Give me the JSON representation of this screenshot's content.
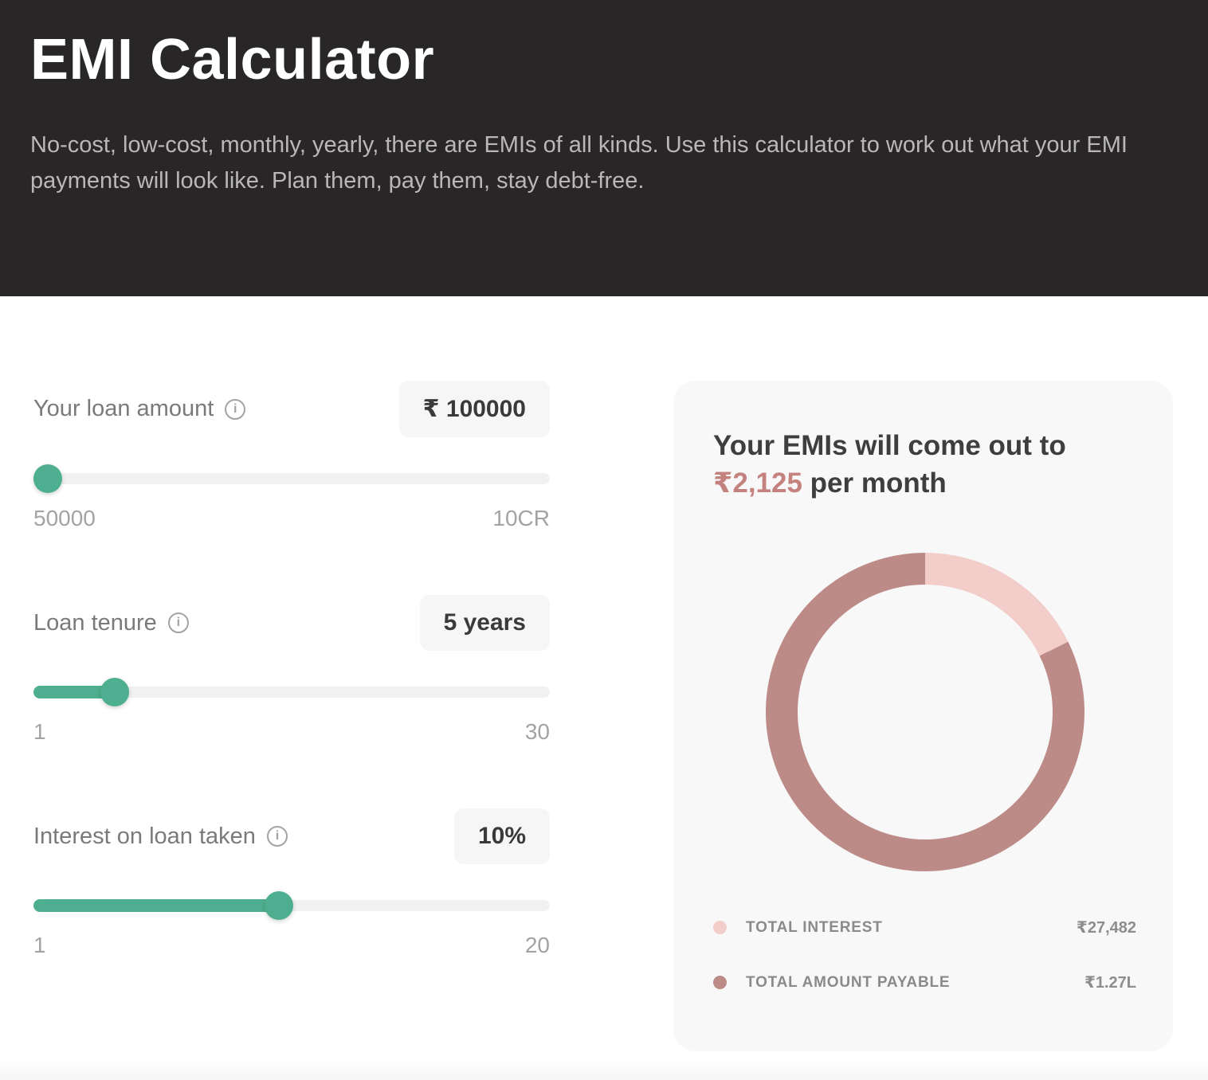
{
  "header": {
    "title": "EMI Calculator",
    "subtitle": "No-cost, low-cost, monthly, yearly, there are EMIs of all kinds. Use this calculator to work out what your EMI payments will look like. Plan them, pay them, stay debt-free."
  },
  "controls": [
    {
      "id": "loan-amount",
      "label": "Your loan amount",
      "value_display": "₹ 100000",
      "value": 100000,
      "min": 50000,
      "max": 100000000,
      "min_label": "50000",
      "max_label": "10CR"
    },
    {
      "id": "loan-tenure",
      "label": "Loan tenure",
      "value_display": "5 years",
      "value": 5,
      "min": 1,
      "max": 30,
      "min_label": "1",
      "max_label": "30"
    },
    {
      "id": "interest-rate",
      "label": "Interest on loan taken",
      "value_display": "10%",
      "value": 10,
      "min": 1,
      "max": 20,
      "min_label": "1",
      "max_label": "20"
    }
  ],
  "result_card": {
    "heading_prefix": "Your EMIs will come out to",
    "emi_amount": "₹2,125",
    "heading_suffix": " per month",
    "legend": [
      {
        "label": "TOTAL INTEREST",
        "value_display": "₹27,482",
        "color": "#f2cdca"
      },
      {
        "label": "TOTAL AMOUNT PAYABLE",
        "value_display": "₹1.27L",
        "color": "#bd8b87"
      }
    ]
  },
  "chart_data": {
    "type": "pie",
    "subtype": "donut",
    "title": "EMI split",
    "series": [
      {
        "name": "Total interest",
        "value": 27482,
        "color": "#f2cdca"
      },
      {
        "name": "Total amount payable",
        "value": 127482,
        "color": "#bd8b87"
      }
    ],
    "start_angle_deg": 0,
    "direction": "clockwise",
    "hole_color": "#f8f8f9"
  },
  "colors": {
    "accent_teal": "#4daf8f",
    "rose_text": "#c4827e",
    "header_bg": "#282626",
    "card_bg": "#f8f8f9"
  }
}
